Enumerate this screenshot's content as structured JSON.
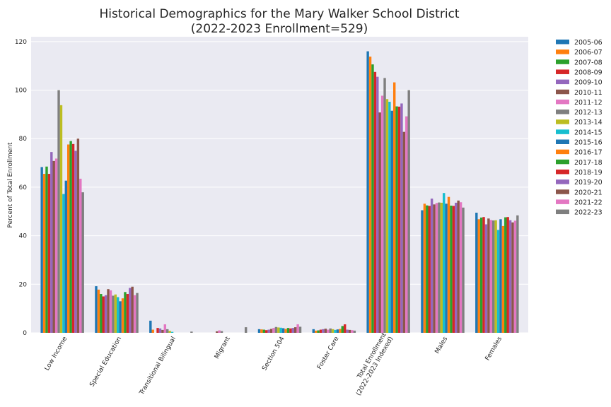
{
  "chart_data": {
    "type": "bar",
    "title": "Historical Demographics for the Mary Walker School District",
    "subtitle": "(2022-2023 Enrollment=529)",
    "ylabel": "Percent of Total Enrollment",
    "xlabel": "",
    "ylim": [
      0,
      122
    ],
    "yticks": [
      0,
      20,
      40,
      60,
      80,
      100,
      120
    ],
    "grid": true,
    "legend_position": "outside-right",
    "categories": [
      "Low Income",
      "Special Education",
      "Transitional Bilingual",
      "Migrant",
      "Section 504",
      "Foster Care",
      "Total Enrollment\n(2022-2023 Indexed)",
      "Males",
      "Females"
    ],
    "series": [
      {
        "name": "2005-06",
        "color": "#1f77b4",
        "values": [
          68.3,
          19.2,
          5.0,
          0.0,
          1.5,
          1.5,
          116.0,
          50.5,
          49.5
        ]
      },
      {
        "name": "2006-07",
        "color": "#ff7f0e",
        "values": [
          65.5,
          17.8,
          1.3,
          0.0,
          1.4,
          0.9,
          113.8,
          53.2,
          46.8
        ]
      },
      {
        "name": "2007-08",
        "color": "#2ca02c",
        "values": [
          68.5,
          16.0,
          0.0,
          0.0,
          1.3,
          1.0,
          110.6,
          52.5,
          47.5
        ]
      },
      {
        "name": "2008-09",
        "color": "#d62728",
        "values": [
          65.5,
          15.0,
          2.0,
          0.0,
          1.1,
          1.3,
          107.5,
          52.3,
          47.7
        ]
      },
      {
        "name": "2009-10",
        "color": "#9467bd",
        "values": [
          74.5,
          15.5,
          1.8,
          0.0,
          1.3,
          1.5,
          105.5,
          55.3,
          44.7
        ]
      },
      {
        "name": "2010-11",
        "color": "#8c564b",
        "values": [
          70.8,
          18.0,
          1.2,
          0.6,
          1.6,
          1.7,
          90.8,
          52.9,
          47.1
        ]
      },
      {
        "name": "2011-12",
        "color": "#e377c2",
        "values": [
          71.8,
          17.5,
          3.5,
          1.0,
          2.0,
          1.3,
          97.7,
          53.5,
          46.5
        ]
      },
      {
        "name": "2012-13",
        "color": "#7f7f7f",
        "values": [
          100.0,
          15.3,
          1.5,
          0.7,
          2.4,
          1.8,
          105.0,
          53.7,
          46.3
        ]
      },
      {
        "name": "2013-14",
        "color": "#bcbd22",
        "values": [
          93.8,
          15.8,
          0.8,
          0.0,
          2.2,
          1.5,
          96.3,
          53.6,
          46.4
        ]
      },
      {
        "name": "2014-15",
        "color": "#17becf",
        "values": [
          57.2,
          14.7,
          0.4,
          0.0,
          2.1,
          1.2,
          95.2,
          57.6,
          42.4
        ]
      },
      {
        "name": "2015-16",
        "color": "#1f77b4",
        "values": [
          62.7,
          13.0,
          0.0,
          0.0,
          1.9,
          1.4,
          91.5,
          53.2,
          46.8
        ]
      },
      {
        "name": "2016-17",
        "color": "#ff7f0e",
        "values": [
          77.6,
          14.2,
          0.0,
          0.0,
          1.6,
          1.6,
          103.2,
          56.0,
          44.0
        ]
      },
      {
        "name": "2017-18",
        "color": "#2ca02c",
        "values": [
          79.0,
          16.8,
          0.0,
          0.0,
          2.0,
          2.8,
          93.3,
          52.4,
          47.6
        ]
      },
      {
        "name": "2018-19",
        "color": "#d62728",
        "values": [
          77.8,
          16.0,
          0.0,
          0.0,
          1.8,
          3.5,
          93.2,
          52.3,
          47.7
        ]
      },
      {
        "name": "2019-20",
        "color": "#9467bd",
        "values": [
          75.0,
          18.5,
          0.0,
          0.0,
          2.0,
          1.3,
          94.5,
          53.6,
          46.4
        ]
      },
      {
        "name": "2020-21",
        "color": "#8c564b",
        "values": [
          80.0,
          19.0,
          0.0,
          0.0,
          2.3,
          1.2,
          82.8,
          54.5,
          45.5
        ]
      },
      {
        "name": "2021-22",
        "color": "#e377c2",
        "values": [
          63.5,
          15.5,
          0.0,
          0.0,
          3.5,
          1.1,
          89.2,
          53.8,
          46.2
        ]
      },
      {
        "name": "2022-23",
        "color": "#7f7f7f",
        "values": [
          57.9,
          16.4,
          0.5,
          2.3,
          2.5,
          0.9,
          100.0,
          51.6,
          48.4
        ]
      }
    ]
  }
}
